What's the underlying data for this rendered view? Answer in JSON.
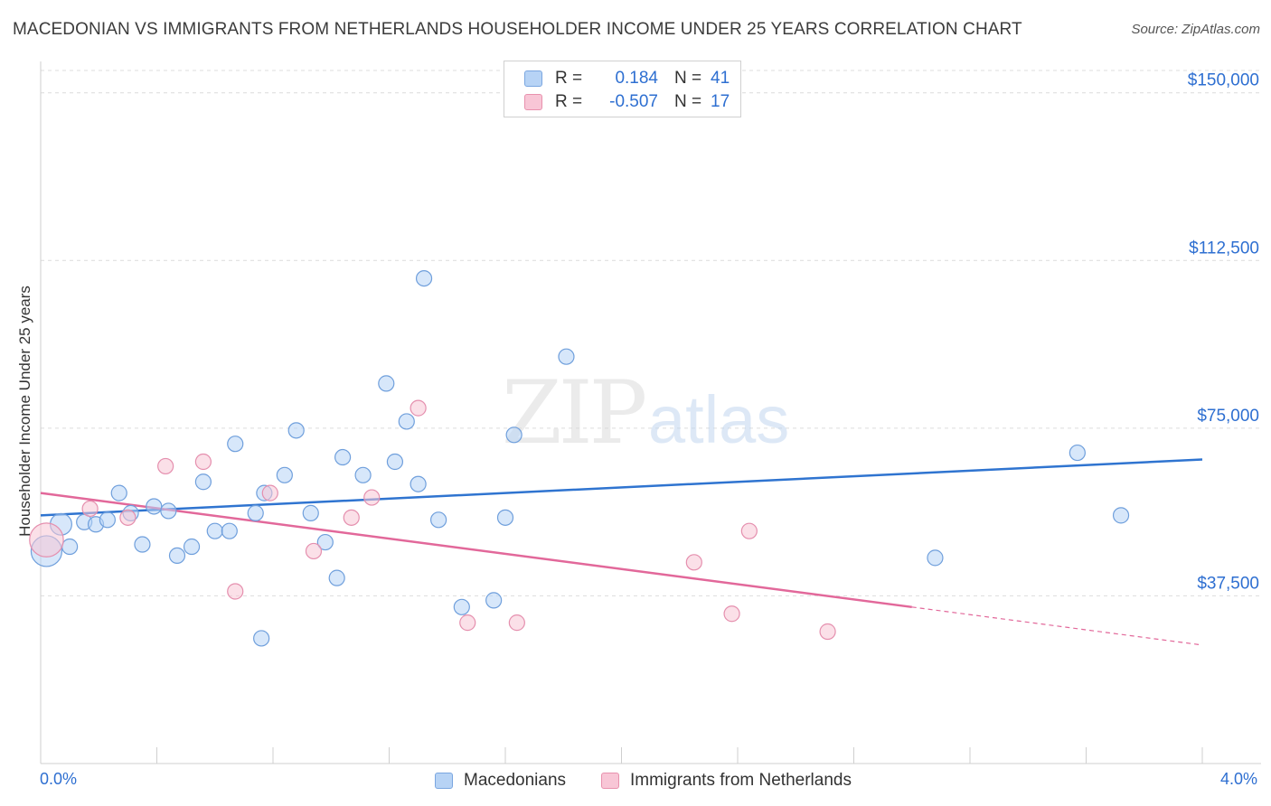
{
  "title": "MACEDONIAN VS IMMIGRANTS FROM NETHERLANDS HOUSEHOLDER INCOME UNDER 25 YEARS CORRELATION CHART",
  "source": "Source: ZipAtlas.com",
  "legend": {
    "r_label": "R =",
    "n_label": "N =",
    "series1": {
      "r": "0.184",
      "n": "41"
    },
    "series2": {
      "r": "-0.507",
      "n": "17"
    }
  },
  "bottom_legend": {
    "series1": "Macedonians",
    "series2": "Immigrants from Netherlands"
  },
  "x_axis": {
    "min_label": "0.0%",
    "max_label": "4.0%"
  },
  "watermark": {
    "zip": "ZIP",
    "atlas": "atlas"
  },
  "colors": {
    "blue": "#2f74d0",
    "pink": "#e2689a",
    "blue_fill": "#b7d3f5",
    "pink_fill": "#f8c6d6",
    "axis_text": "#2e6fd1"
  },
  "chart_data": {
    "type": "scatter",
    "title": "MACEDONIAN VS IMMIGRANTS FROM NETHERLANDS HOUSEHOLDER INCOME UNDER 25 YEARS CORRELATION CHART",
    "xlabel": "",
    "ylabel": "Householder Income Under 25 years",
    "xlim": [
      0,
      4.0
    ],
    "ylim": [
      0,
      155000
    ],
    "y_ticks": [
      {
        "value": 37500,
        "label": "$37,500"
      },
      {
        "value": 75000,
        "label": "$75,000"
      },
      {
        "value": 112500,
        "label": "$112,500"
      },
      {
        "value": 150000,
        "label": "$150,000"
      }
    ],
    "series": [
      {
        "name": "Macedonians",
        "color": "#2f74d0",
        "points": [
          [
            0.02,
            47500,
            2
          ],
          [
            0.07,
            53500,
            1.4
          ],
          [
            0.1,
            48500,
            1
          ],
          [
            0.15,
            54000,
            1
          ],
          [
            0.19,
            53500,
            1
          ],
          [
            0.23,
            54500,
            1
          ],
          [
            0.27,
            60500,
            1
          ],
          [
            0.31,
            56000,
            1
          ],
          [
            0.35,
            49000,
            1
          ],
          [
            0.39,
            57500,
            1
          ],
          [
            0.44,
            56500,
            1
          ],
          [
            0.47,
            46500,
            1
          ],
          [
            0.52,
            48500,
            1
          ],
          [
            0.56,
            63000,
            1
          ],
          [
            0.6,
            52000,
            1
          ],
          [
            0.65,
            52000,
            1
          ],
          [
            0.67,
            71500,
            1
          ],
          [
            0.74,
            56000,
            1
          ],
          [
            0.76,
            28000,
            1
          ],
          [
            0.77,
            60500,
            1
          ],
          [
            0.84,
            64500,
            1
          ],
          [
            0.88,
            74500,
            1
          ],
          [
            0.93,
            56000,
            1
          ],
          [
            0.98,
            49500,
            1
          ],
          [
            1.02,
            41500,
            1
          ],
          [
            1.04,
            68500,
            1
          ],
          [
            1.11,
            64500,
            1
          ],
          [
            1.19,
            85000,
            1
          ],
          [
            1.22,
            67500,
            1
          ],
          [
            1.26,
            76500,
            1
          ],
          [
            1.3,
            62500,
            1
          ],
          [
            1.32,
            108500,
            1
          ],
          [
            1.37,
            54500,
            1
          ],
          [
            1.45,
            35000,
            1
          ],
          [
            1.56,
            36500,
            1
          ],
          [
            1.6,
            55000,
            1
          ],
          [
            1.63,
            73500,
            1
          ],
          [
            1.81,
            91000,
            1
          ],
          [
            3.08,
            46000,
            1
          ],
          [
            3.57,
            69500,
            1
          ],
          [
            3.72,
            55500,
            1
          ]
        ],
        "trend": {
          "x": [
            0.0,
            4.0
          ],
          "y": [
            55500,
            68000
          ]
        }
      },
      {
        "name": "Immigrants from Netherlands",
        "color": "#e2689a",
        "points": [
          [
            0.02,
            50000,
            2.2
          ],
          [
            0.17,
            57000,
            1
          ],
          [
            0.3,
            55000,
            1
          ],
          [
            0.43,
            66500,
            1
          ],
          [
            0.56,
            67500,
            1
          ],
          [
            0.67,
            38500,
            1
          ],
          [
            0.79,
            60500,
            1
          ],
          [
            0.94,
            47500,
            1
          ],
          [
            1.07,
            55000,
            1
          ],
          [
            1.14,
            59500,
            1
          ],
          [
            1.3,
            79500,
            1
          ],
          [
            1.47,
            31500,
            1
          ],
          [
            1.64,
            31500,
            1
          ],
          [
            2.25,
            45000,
            1
          ],
          [
            2.38,
            33500,
            1
          ],
          [
            2.44,
            52000,
            1
          ],
          [
            2.71,
            29500,
            1
          ]
        ],
        "trend": {
          "x": [
            0.0,
            4.0
          ],
          "y": [
            60500,
            26500
          ],
          "solid_until_x": 3.0
        }
      }
    ]
  }
}
